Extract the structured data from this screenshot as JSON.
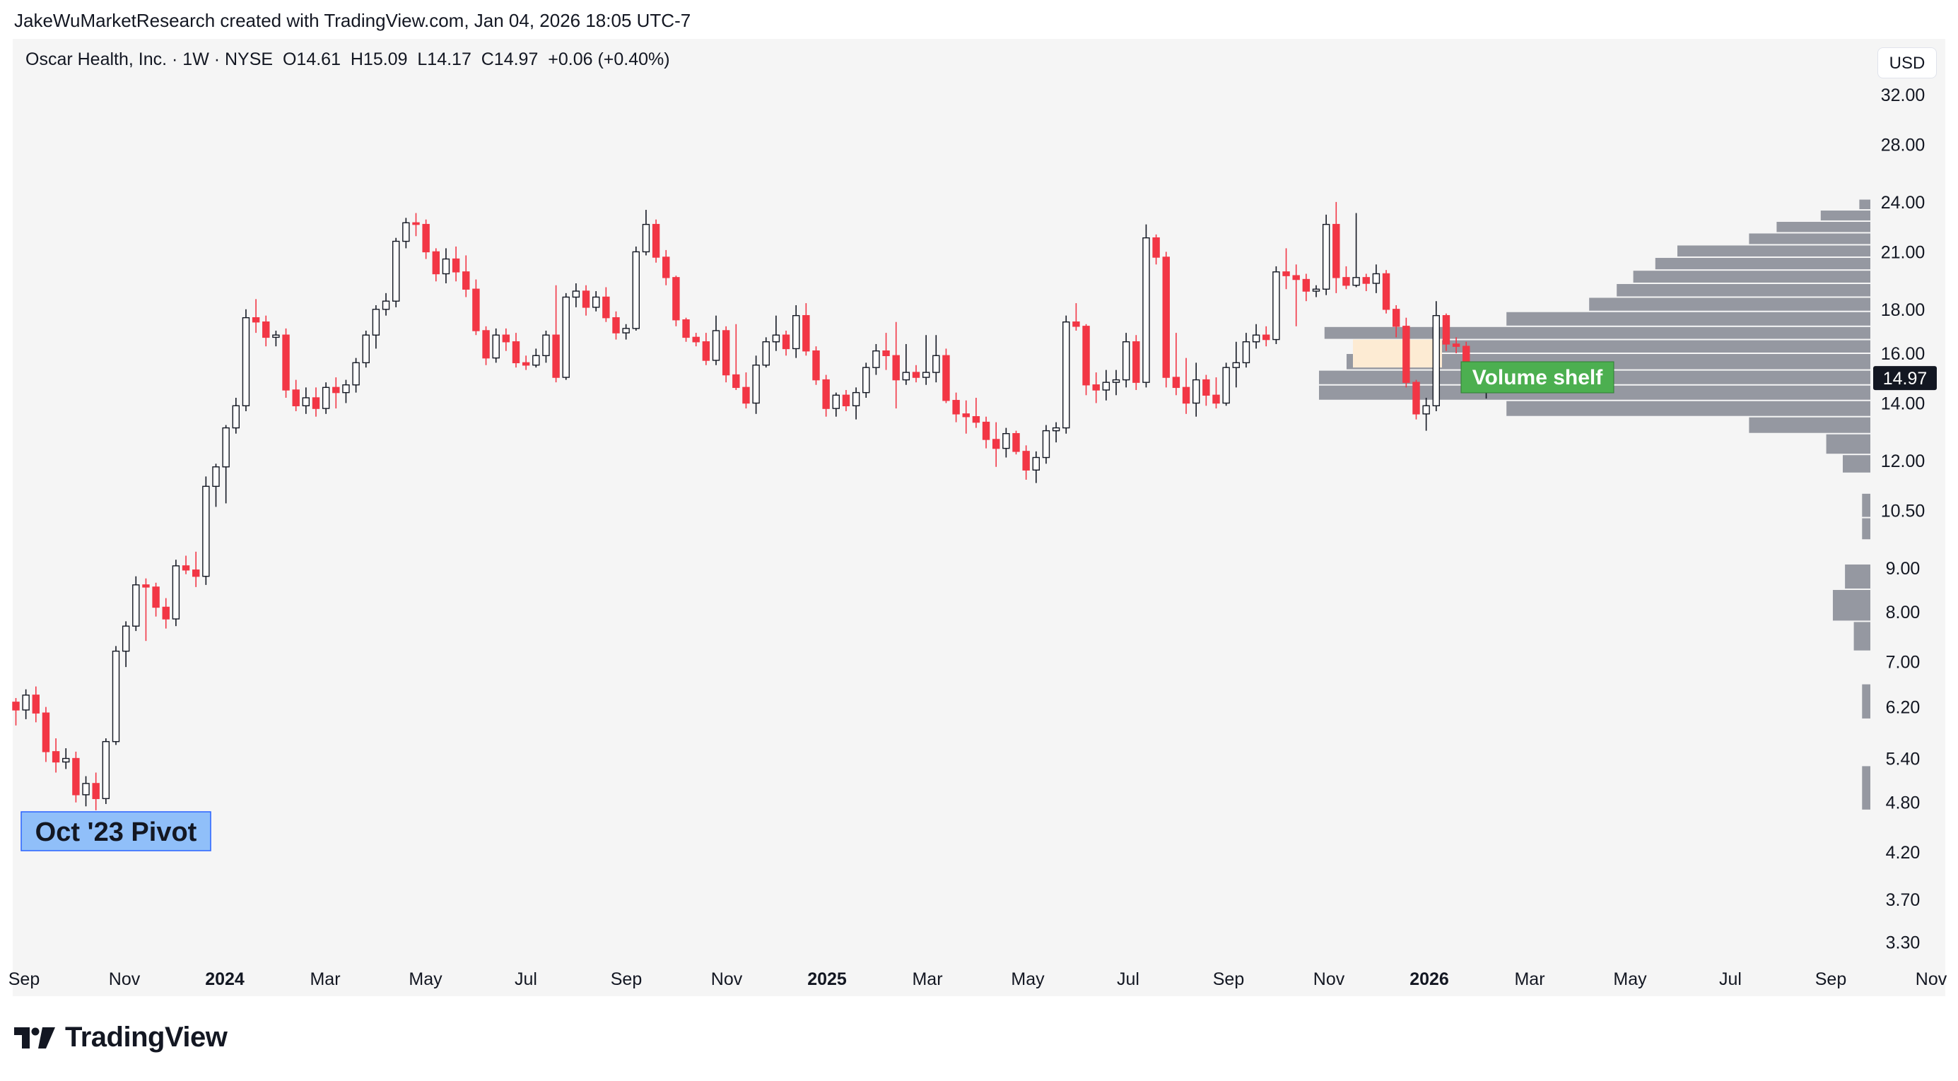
{
  "header": {
    "credit": "JakeWuMarketResearch created with TradingView.com, Jan 04, 2026 18:05 UTC-7"
  },
  "legend": {
    "text": "Oscar Health, Inc. · 1W · NYSE  O14.61  H15.09  L14.17  C14.97  +0.06 (+0.40%)"
  },
  "currency_button": "USD",
  "footer": {
    "brand": "TradingView"
  },
  "annotations": {
    "pivot_label": "Oct '23 Pivot",
    "shelf_label": "Volume shelf"
  },
  "colors": {
    "up_body": "#ffffff",
    "up_border": "#131722",
    "down": "#f23645",
    "profile": "#9598a1",
    "shelf_label_bg": "#4caf50",
    "pivot_label_bg": "#90bff9",
    "value_area_highlight": "#fdebd3"
  },
  "chart_data": {
    "type": "candlestick",
    "symbol": "Oscar Health, Inc.",
    "interval": "1W",
    "exchange": "NYSE",
    "last_price": "14.97",
    "y_scale": "log",
    "y_ticks": [
      "32.00",
      "28.00",
      "24.00",
      "21.00",
      "18.00",
      "16.00",
      "14.00",
      "12.00",
      "10.50",
      "9.00",
      "8.00",
      "7.00",
      "6.20",
      "5.40",
      "4.80",
      "4.20",
      "3.70",
      "3.30"
    ],
    "x_ticks": [
      {
        "label": "Sep",
        "bold": false
      },
      {
        "label": "Nov",
        "bold": false
      },
      {
        "label": "2024",
        "bold": true
      },
      {
        "label": "Mar",
        "bold": false
      },
      {
        "label": "May",
        "bold": false
      },
      {
        "label": "Jul",
        "bold": false
      },
      {
        "label": "Sep",
        "bold": false
      },
      {
        "label": "Nov",
        "bold": false
      },
      {
        "label": "2025",
        "bold": true
      },
      {
        "label": "Mar",
        "bold": false
      },
      {
        "label": "May",
        "bold": false
      },
      {
        "label": "Jul",
        "bold": false
      },
      {
        "label": "Sep",
        "bold": false
      },
      {
        "label": "Nov",
        "bold": false
      },
      {
        "label": "2026",
        "bold": true
      },
      {
        "label": "Mar",
        "bold": false
      },
      {
        "label": "May",
        "bold": false
      },
      {
        "label": "Jul",
        "bold": false
      },
      {
        "label": "Sep",
        "bold": false
      },
      {
        "label": "Nov",
        "bold": false
      }
    ],
    "candles": [
      [
        6.28,
        6.35,
        5.9,
        6.15
      ],
      [
        6.15,
        6.5,
        6.0,
        6.4
      ],
      [
        6.4,
        6.55,
        5.95,
        6.1
      ],
      [
        6.1,
        6.2,
        5.35,
        5.5
      ],
      [
        5.5,
        5.7,
        5.2,
        5.35
      ],
      [
        5.35,
        5.55,
        5.25,
        5.4
      ],
      [
        5.4,
        5.5,
        4.8,
        4.9
      ],
      [
        4.9,
        5.15,
        4.75,
        5.05
      ],
      [
        5.05,
        5.2,
        4.7,
        4.85
      ],
      [
        4.85,
        5.7,
        4.78,
        5.65
      ],
      [
        5.65,
        7.3,
        5.6,
        7.2
      ],
      [
        7.2,
        7.8,
        6.9,
        7.7
      ],
      [
        7.7,
        8.8,
        7.6,
        8.6
      ],
      [
        8.6,
        8.75,
        7.4,
        8.55
      ],
      [
        8.55,
        8.65,
        7.9,
        8.1
      ],
      [
        8.1,
        8.3,
        7.65,
        7.85
      ],
      [
        7.85,
        9.2,
        7.7,
        9.05
      ],
      [
        9.05,
        9.3,
        8.85,
        8.95
      ],
      [
        8.95,
        9.4,
        8.55,
        8.8
      ],
      [
        8.8,
        11.5,
        8.6,
        11.2
      ],
      [
        11.2,
        11.9,
        10.6,
        11.8
      ],
      [
        11.8,
        13.2,
        10.7,
        13.1
      ],
      [
        13.1,
        14.2,
        12.9,
        13.9
      ],
      [
        13.9,
        18.0,
        13.7,
        17.6
      ],
      [
        17.6,
        18.5,
        16.9,
        17.4
      ],
      [
        17.4,
        17.7,
        16.3,
        16.7
      ],
      [
        16.7,
        17.0,
        16.3,
        16.8
      ],
      [
        16.8,
        17.1,
        14.2,
        14.5
      ],
      [
        14.5,
        14.9,
        13.7,
        13.9
      ],
      [
        13.9,
        14.6,
        13.6,
        14.2
      ],
      [
        14.2,
        14.6,
        13.5,
        13.8
      ],
      [
        13.8,
        14.8,
        13.6,
        14.6
      ],
      [
        14.6,
        15.0,
        13.8,
        14.4
      ],
      [
        14.4,
        14.9,
        14.0,
        14.7
      ],
      [
        14.7,
        15.8,
        14.4,
        15.6
      ],
      [
        15.6,
        17.0,
        15.4,
        16.8
      ],
      [
        16.8,
        18.2,
        16.2,
        18.0
      ],
      [
        18.0,
        18.8,
        17.7,
        18.4
      ],
      [
        18.4,
        21.8,
        18.1,
        21.6
      ],
      [
        21.6,
        23.0,
        21.2,
        22.7
      ],
      [
        22.7,
        23.3,
        21.9,
        22.6
      ],
      [
        22.6,
        22.9,
        20.6,
        21.0
      ],
      [
        21.0,
        21.2,
        19.4,
        19.8
      ],
      [
        19.8,
        21.2,
        19.3,
        20.6
      ],
      [
        20.6,
        21.3,
        19.4,
        19.9
      ],
      [
        19.9,
        20.8,
        18.6,
        19.0
      ],
      [
        19.0,
        19.5,
        16.8,
        17.0
      ],
      [
        17.0,
        17.2,
        15.5,
        15.8
      ],
      [
        15.8,
        17.1,
        15.6,
        16.8
      ],
      [
        16.8,
        17.1,
        16.1,
        16.5
      ],
      [
        16.5,
        16.9,
        15.4,
        15.6
      ],
      [
        15.6,
        15.9,
        15.3,
        15.5
      ],
      [
        15.5,
        16.2,
        15.4,
        15.9
      ],
      [
        15.9,
        17.0,
        15.6,
        16.8
      ],
      [
        16.8,
        19.2,
        14.8,
        15.0
      ],
      [
        15.0,
        18.8,
        14.9,
        18.6
      ],
      [
        18.6,
        19.3,
        18.1,
        18.9
      ],
      [
        18.9,
        19.2,
        17.7,
        18.1
      ],
      [
        18.1,
        18.9,
        17.9,
        18.6
      ],
      [
        18.6,
        19.1,
        17.4,
        17.6
      ],
      [
        17.6,
        17.9,
        16.6,
        16.9
      ],
      [
        16.9,
        17.3,
        16.6,
        17.1
      ],
      [
        17.1,
        21.3,
        17.0,
        21.0
      ],
      [
        21.0,
        23.5,
        20.8,
        22.6
      ],
      [
        22.6,
        22.9,
        20.4,
        20.7
      ],
      [
        20.7,
        21.1,
        19.2,
        19.6
      ],
      [
        19.6,
        19.7,
        17.2,
        17.5
      ],
      [
        17.5,
        17.6,
        16.5,
        16.7
      ],
      [
        16.7,
        16.9,
        16.3,
        16.5
      ],
      [
        16.5,
        16.9,
        15.5,
        15.7
      ],
      [
        15.7,
        17.7,
        15.5,
        17.0
      ],
      [
        17.0,
        17.2,
        14.8,
        15.1
      ],
      [
        15.1,
        17.3,
        14.5,
        14.6
      ],
      [
        14.6,
        15.2,
        13.8,
        14.0
      ],
      [
        14.0,
        15.9,
        13.6,
        15.5
      ],
      [
        15.5,
        16.7,
        15.4,
        16.5
      ],
      [
        16.5,
        17.7,
        16.1,
        16.8
      ],
      [
        16.8,
        17.0,
        15.9,
        16.2
      ],
      [
        16.2,
        18.2,
        15.8,
        17.7
      ],
      [
        17.7,
        18.3,
        15.9,
        16.1
      ],
      [
        16.1,
        16.3,
        14.7,
        14.9
      ],
      [
        14.9,
        15.1,
        13.5,
        13.8
      ],
      [
        13.8,
        14.4,
        13.5,
        14.3
      ],
      [
        14.3,
        14.5,
        13.7,
        13.9
      ],
      [
        13.9,
        14.6,
        13.4,
        14.4
      ],
      [
        14.4,
        15.6,
        14.2,
        15.4
      ],
      [
        15.4,
        16.4,
        15.1,
        16.1
      ],
      [
        16.1,
        16.9,
        15.3,
        15.9
      ],
      [
        15.9,
        17.4,
        13.8,
        14.9
      ],
      [
        14.9,
        16.4,
        14.7,
        15.2
      ],
      [
        15.2,
        15.5,
        14.8,
        15.0
      ],
      [
        15.0,
        16.8,
        14.7,
        15.2
      ],
      [
        15.2,
        16.8,
        14.8,
        15.9
      ],
      [
        15.9,
        16.2,
        14.0,
        14.1
      ],
      [
        14.1,
        14.4,
        13.3,
        13.6
      ],
      [
        13.6,
        14.1,
        12.9,
        13.5
      ],
      [
        13.5,
        14.2,
        13.1,
        13.3
      ],
      [
        13.3,
        13.5,
        12.4,
        12.7
      ],
      [
        12.7,
        13.3,
        11.8,
        12.4
      ],
      [
        12.4,
        13.1,
        12.1,
        12.9
      ],
      [
        12.9,
        13.0,
        12.2,
        12.3
      ],
      [
        12.3,
        12.5,
        11.4,
        11.7
      ],
      [
        11.7,
        12.3,
        11.3,
        12.1
      ],
      [
        12.1,
        13.2,
        11.9,
        13.0
      ],
      [
        13.0,
        13.3,
        12.6,
        13.1
      ],
      [
        13.1,
        17.7,
        12.9,
        17.4
      ],
      [
        17.4,
        18.3,
        17.0,
        17.2
      ],
      [
        17.2,
        17.3,
        14.3,
        14.7
      ],
      [
        14.7,
        15.2,
        14.0,
        14.5
      ],
      [
        14.5,
        15.3,
        14.1,
        14.8
      ],
      [
        14.8,
        15.3,
        14.3,
        14.9
      ],
      [
        14.9,
        16.9,
        14.6,
        16.5
      ],
      [
        16.5,
        16.8,
        14.5,
        14.8
      ],
      [
        14.8,
        22.6,
        14.6,
        21.8
      ],
      [
        21.8,
        22.0,
        20.3,
        20.7
      ],
      [
        20.7,
        21.0,
        14.6,
        15.0
      ],
      [
        15.0,
        16.9,
        14.3,
        14.6
      ],
      [
        14.6,
        15.8,
        13.6,
        14.0
      ],
      [
        14.0,
        15.6,
        13.5,
        14.9
      ],
      [
        14.9,
        15.1,
        13.9,
        14.3
      ],
      [
        14.3,
        15.0,
        13.8,
        14.0
      ],
      [
        14.0,
        15.6,
        13.9,
        15.4
      ],
      [
        15.4,
        16.5,
        14.6,
        15.6
      ],
      [
        15.6,
        16.9,
        15.4,
        16.5
      ],
      [
        16.5,
        17.3,
        16.2,
        16.8
      ],
      [
        16.8,
        17.2,
        16.3,
        16.6
      ],
      [
        16.6,
        20.2,
        16.4,
        19.9
      ],
      [
        19.9,
        21.2,
        19.0,
        19.7
      ],
      [
        19.7,
        20.3,
        17.2,
        19.5
      ],
      [
        19.5,
        19.8,
        18.4,
        18.9
      ],
      [
        18.9,
        19.2,
        18.6,
        19.0
      ],
      [
        19.0,
        23.2,
        18.7,
        22.6
      ],
      [
        22.6,
        24.0,
        18.8,
        19.6
      ],
      [
        19.6,
        20.2,
        19.0,
        19.2
      ],
      [
        19.2,
        23.3,
        19.1,
        19.6
      ],
      [
        19.6,
        19.8,
        18.9,
        19.3
      ],
      [
        19.3,
        20.3,
        18.8,
        19.8
      ],
      [
        19.8,
        20.0,
        17.8,
        18.0
      ],
      [
        18.0,
        18.2,
        16.7,
        17.2
      ],
      [
        17.2,
        17.6,
        14.6,
        14.8
      ],
      [
        14.8,
        14.9,
        13.4,
        13.6
      ],
      [
        13.6,
        14.2,
        13.0,
        13.9
      ],
      [
        13.9,
        18.4,
        13.7,
        17.7
      ],
      [
        17.7,
        17.8,
        16.1,
        16.4
      ],
      [
        16.4,
        16.7,
        16.0,
        16.3
      ],
      [
        16.3,
        16.5,
        14.6,
        14.9
      ],
      [
        14.91,
        15.3,
        14.6,
        14.91
      ],
      [
        14.61,
        15.09,
        14.17,
        14.97
      ]
    ],
    "volume_profile": [
      {
        "low": 23.5,
        "high": 24.2,
        "volume": 0.02
      },
      {
        "low": 22.8,
        "high": 23.5,
        "volume": 0.09
      },
      {
        "low": 22.1,
        "high": 22.8,
        "volume": 0.17
      },
      {
        "low": 21.4,
        "high": 22.1,
        "volume": 0.22
      },
      {
        "low": 20.7,
        "high": 21.4,
        "volume": 0.35
      },
      {
        "low": 20.0,
        "high": 20.7,
        "volume": 0.39
      },
      {
        "low": 19.3,
        "high": 20.0,
        "volume": 0.43
      },
      {
        "low": 18.6,
        "high": 19.3,
        "volume": 0.46
      },
      {
        "low": 17.9,
        "high": 18.6,
        "volume": 0.51
      },
      {
        "low": 17.2,
        "high": 17.9,
        "volume": 0.66
      },
      {
        "low": 16.6,
        "high": 17.2,
        "volume": 0.99
      },
      {
        "low": 16.0,
        "high": 16.6,
        "volume": 0.82
      },
      {
        "low": 15.3,
        "high": 16.0,
        "volume": 0.95
      },
      {
        "low": 14.7,
        "high": 15.3,
        "volume": 1.0
      },
      {
        "low": 14.1,
        "high": 14.7,
        "volume": 1.0
      },
      {
        "low": 13.5,
        "high": 14.1,
        "volume": 0.66
      },
      {
        "low": 12.9,
        "high": 13.5,
        "volume": 0.22
      },
      {
        "low": 12.2,
        "high": 12.9,
        "volume": 0.08
      },
      {
        "low": 11.6,
        "high": 12.2,
        "volume": 0.05
      },
      {
        "low": 11.0,
        "high": 11.6,
        "volume": 0.0
      },
      {
        "low": 10.3,
        "high": 11.0,
        "volume": 0.015
      },
      {
        "low": 9.7,
        "high": 10.3,
        "volume": 0.015
      },
      {
        "low": 9.1,
        "high": 9.7,
        "volume": 0.0
      },
      {
        "low": 8.5,
        "high": 9.1,
        "volume": 0.046
      },
      {
        "low": 7.8,
        "high": 8.5,
        "volume": 0.068
      },
      {
        "low": 7.2,
        "high": 7.8,
        "volume": 0.03
      },
      {
        "low": 6.6,
        "high": 7.2,
        "volume": 0.0
      },
      {
        "low": 6.0,
        "high": 6.6,
        "volume": 0.015
      },
      {
        "low": 5.3,
        "high": 6.0,
        "volume": 0.0
      },
      {
        "low": 4.7,
        "high": 5.3,
        "volume": 0.015
      }
    ]
  }
}
